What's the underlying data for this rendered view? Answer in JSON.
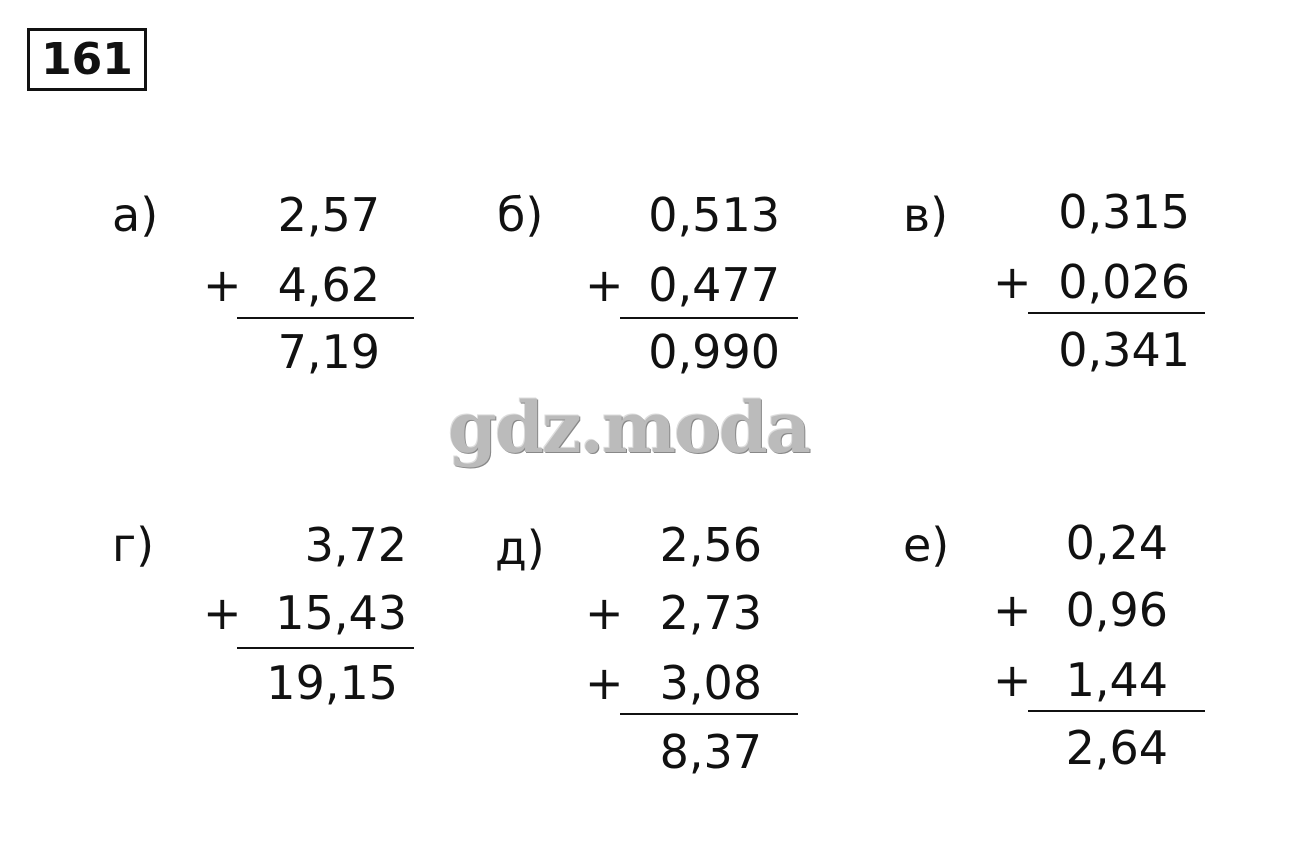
{
  "task_number": "161",
  "watermark": "gdz.moda",
  "problems": [
    {
      "label": "а)",
      "operands": [
        "2,57",
        "4,62"
      ],
      "operator": "+",
      "result": "7,19"
    },
    {
      "label": "б)",
      "operands": [
        "0,513",
        "0,477"
      ],
      "operator": "+",
      "result": "0,990"
    },
    {
      "label": "в)",
      "operands": [
        "0,315",
        "0,026"
      ],
      "operator": "+",
      "result": "0,341"
    },
    {
      "label": "г)",
      "operands": [
        "3,72",
        "15,43"
      ],
      "operator": "+",
      "result": "19,15"
    },
    {
      "label": "д)",
      "operands": [
        "2,56",
        "2,73",
        "3,08"
      ],
      "operator": "+",
      "result": "8,37"
    },
    {
      "label": "е)",
      "operands": [
        "0,24",
        "0,96",
        "1,44"
      ],
      "operator": "+",
      "result": "2,64"
    }
  ]
}
